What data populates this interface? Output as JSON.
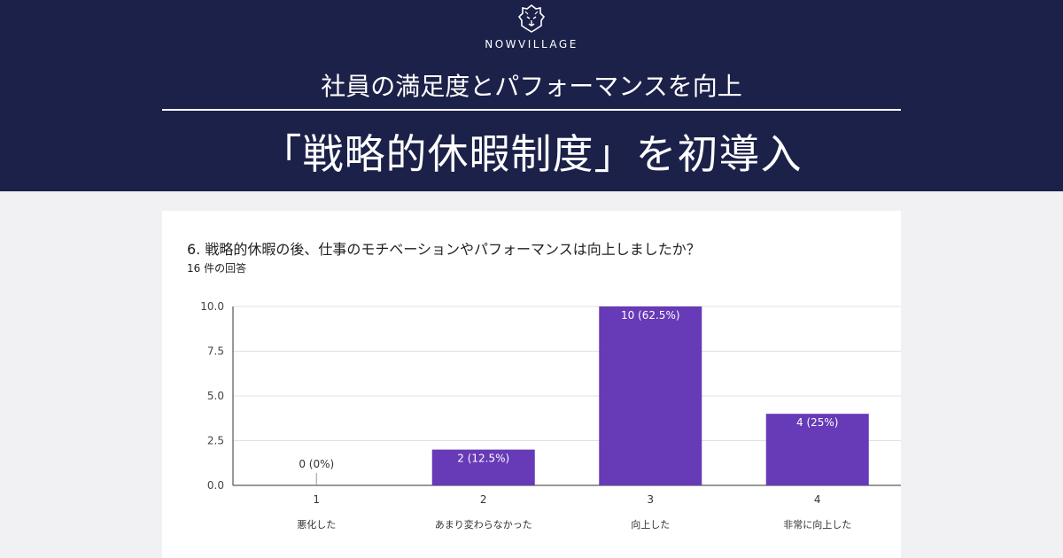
{
  "brand": {
    "name": "NOWVILLAGE",
    "logo_icon": "lion-head-icon"
  },
  "banner": {
    "subtitle": "社員の満足度とパフォーマンスを向上",
    "headline": "「戦略的休暇制度」を初導入",
    "bg_color": "#1c2149"
  },
  "survey": {
    "question": "6. 戦略的休暇の後、仕事のモチベーションやパフォーマンスは向上しましたか？",
    "response_count": "16 件の回答"
  },
  "chart_data": {
    "type": "bar",
    "categories": [
      "1",
      "2",
      "3",
      "4"
    ],
    "category_descriptions": [
      "悪化した",
      "あまり変わらなかった",
      "向上した",
      "非常に向上した"
    ],
    "values": [
      0,
      2,
      10,
      4
    ],
    "data_labels": [
      "0 (0%)",
      "2 (12.5%)",
      "10 (62.5%)",
      "4 (25%)"
    ],
    "y_ticks": [
      "0.0",
      "2.5",
      "5.0",
      "7.5",
      "10.0"
    ],
    "ylim": [
      0,
      10
    ],
    "grid": true,
    "bar_color": "#673ab7"
  }
}
